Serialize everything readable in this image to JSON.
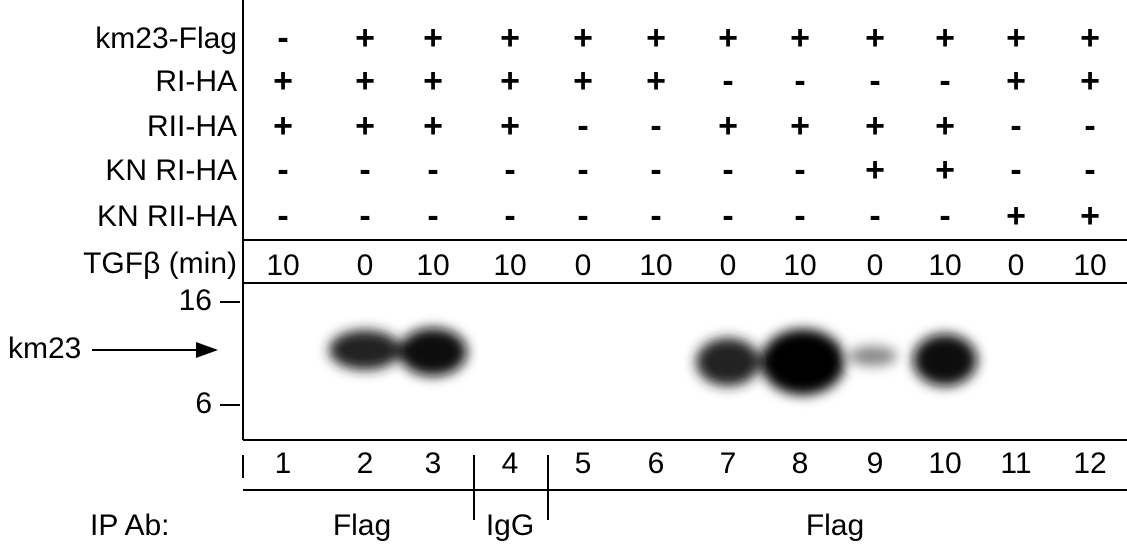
{
  "rows": [
    {
      "label": "km23-Flag",
      "cells": [
        "-",
        "+",
        "+",
        "+",
        "+",
        "+",
        "+",
        "+",
        "+",
        "+",
        "+",
        "+"
      ]
    },
    {
      "label": "RI-HA",
      "cells": [
        "+",
        "+",
        "+",
        "+",
        "+",
        "+",
        "-",
        "-",
        "-",
        "-",
        "+",
        "+"
      ]
    },
    {
      "label": "RII-HA",
      "cells": [
        "+",
        "+",
        "+",
        "+",
        "-",
        "-",
        "+",
        "+",
        "+",
        "+",
        "-",
        "-"
      ]
    },
    {
      "label": "KN RI-HA",
      "cells": [
        "-",
        "-",
        "-",
        "-",
        "-",
        "-",
        "-",
        "-",
        "+",
        "+",
        "-",
        "-"
      ]
    },
    {
      "label": "KN RII-HA",
      "cells": [
        "-",
        "-",
        "-",
        "-",
        "-",
        "-",
        "-",
        "-",
        "-",
        "-",
        "+",
        "+"
      ]
    }
  ],
  "tgf": {
    "label": "TGFβ (min)",
    "cells": [
      10,
      0,
      10,
      10,
      0,
      10,
      0,
      10,
      0,
      10,
      0,
      10
    ]
  },
  "markers": [
    {
      "label": "16"
    },
    {
      "label": "6"
    }
  ],
  "band_label": "km23",
  "lanes": [
    1,
    2,
    3,
    4,
    5,
    6,
    7,
    8,
    9,
    10,
    11,
    12
  ],
  "ip": {
    "label": "IP Ab:",
    "groups": [
      "Flag",
      "IgG",
      "Flag"
    ]
  }
}
